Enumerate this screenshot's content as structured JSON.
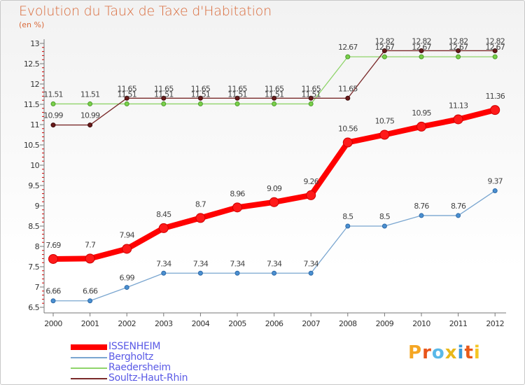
{
  "chart_data": {
    "type": "line",
    "title": "Evolution du Taux de Taxe d'Habitation",
    "subtitle": "(en %)",
    "xlabel": "",
    "ylabel": "",
    "x": [
      "2000",
      "2001",
      "2002",
      "2003",
      "2004",
      "2005",
      "2006",
      "2007",
      "2008",
      "2009",
      "2010",
      "2011",
      "2012"
    ],
    "ylim": [
      6.5,
      13
    ],
    "yticks": [
      6.5,
      7,
      7.5,
      8,
      8.5,
      9,
      9.5,
      10,
      10.5,
      11,
      11.5,
      12,
      12.5,
      13
    ],
    "ytick_labels": [
      "6.5",
      "7",
      "7.5",
      "8",
      "8.5",
      "9",
      "9.5",
      "10",
      "10.5",
      "11",
      "11.5",
      "12",
      "12.5",
      "13"
    ],
    "grid": false,
    "legend_position": "bottom-left",
    "series": [
      {
        "name": "ISSENHEIM",
        "color": "#ff0000",
        "values": [
          7.69,
          7.7,
          7.94,
          8.45,
          8.7,
          8.96,
          9.09,
          9.26,
          10.56,
          10.75,
          10.95,
          11.13,
          11.36
        ],
        "labels": [
          "7.69",
          "7.7",
          "7.94",
          "8.45",
          "8.7",
          "8.96",
          "9.09",
          "9.26",
          "10.56",
          "10.75",
          "10.95",
          "11.13",
          "11.36"
        ]
      },
      {
        "name": "Bergholtz",
        "color": "#7aa6d0",
        "values": [
          6.66,
          6.66,
          6.99,
          7.34,
          7.34,
          7.34,
          7.34,
          7.34,
          8.5,
          8.5,
          8.76,
          8.76,
          9.37
        ],
        "labels": [
          "6.66",
          "6.66",
          "6.99",
          "7.34",
          "7.34",
          "7.34",
          "7.34",
          "7.34",
          "8.5",
          "8.5",
          "8.76",
          "8.76",
          "9.37"
        ]
      },
      {
        "name": "Raedersheim",
        "color": "#8fd46a",
        "values": [
          11.51,
          11.51,
          11.51,
          11.51,
          11.51,
          11.51,
          11.51,
          11.51,
          12.67,
          12.67,
          12.67,
          12.67,
          12.67
        ],
        "labels": [
          "11.51",
          "11.51",
          "11.51",
          "11.51",
          "11.51",
          "11.51",
          "11.51",
          "11.51",
          "12.67",
          "12.67",
          "12.67",
          "12.67",
          "12.67"
        ]
      },
      {
        "name": "Soultz-Haut-Rhin",
        "color": "#7a2a2a",
        "values": [
          10.99,
          10.99,
          11.65,
          11.65,
          11.65,
          11.65,
          11.65,
          11.65,
          11.65,
          12.82,
          12.82,
          12.82,
          12.82
        ],
        "labels": [
          "10.99",
          "10.99",
          "11.65",
          "11.65",
          "11.65",
          "11.65",
          "11.65",
          "11.65",
          "11.65",
          "12.82",
          "12.82",
          "12.82",
          "12.82"
        ]
      }
    ]
  },
  "brand": {
    "text": "Proxiti",
    "letter_colors": [
      "#f5a623",
      "#e8541a",
      "#5ab8e8",
      "#e8b81a",
      "#3a9ad9",
      "#e85a1a",
      "#f5c623"
    ]
  }
}
